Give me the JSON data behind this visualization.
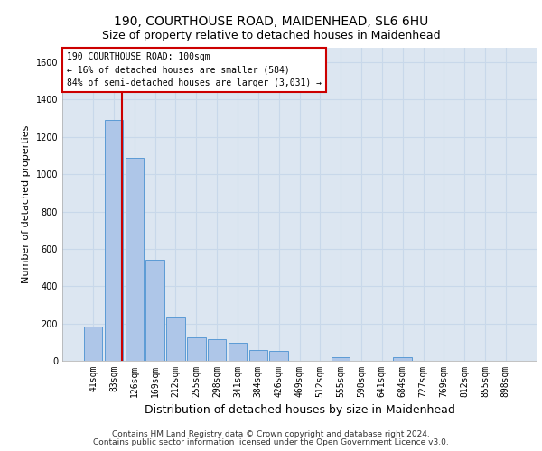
{
  "title1": "190, COURTHOUSE ROAD, MAIDENHEAD, SL6 6HU",
  "title2": "Size of property relative to detached houses in Maidenhead",
  "xlabel": "Distribution of detached houses by size in Maidenhead",
  "ylabel": "Number of detached properties",
  "bar_labels": [
    "41sqm",
    "83sqm",
    "126sqm",
    "169sqm",
    "212sqm",
    "255sqm",
    "298sqm",
    "341sqm",
    "384sqm",
    "426sqm",
    "469sqm",
    "512sqm",
    "555sqm",
    "598sqm",
    "641sqm",
    "684sqm",
    "727sqm",
    "769sqm",
    "812sqm",
    "855sqm",
    "898sqm"
  ],
  "bar_values": [
    185,
    1290,
    1090,
    540,
    235,
    125,
    115,
    95,
    60,
    55,
    0,
    0,
    20,
    0,
    0,
    20,
    0,
    0,
    0,
    0,
    0
  ],
  "bar_color": "#aec6e8",
  "bar_edge_color": "#5b9bd5",
  "background_color": "#dce6f1",
  "grid_color": "#c8d8ea",
  "vline_x": 1.4,
  "vline_color": "#cc0000",
  "annotation_text": "190 COURTHOUSE ROAD: 100sqm\n← 16% of detached houses are smaller (584)\n84% of semi-detached houses are larger (3,031) →",
  "annotation_box_color": "#cc0000",
  "ylim": [
    0,
    1680
  ],
  "yticks": [
    0,
    200,
    400,
    600,
    800,
    1000,
    1200,
    1400,
    1600
  ],
  "footer1": "Contains HM Land Registry data © Crown copyright and database right 2024.",
  "footer2": "Contains public sector information licensed under the Open Government Licence v3.0.",
  "title1_fontsize": 10,
  "title2_fontsize": 9,
  "xlabel_fontsize": 9,
  "ylabel_fontsize": 8,
  "tick_fontsize": 7,
  "annot_fontsize": 7,
  "footer_fontsize": 6.5
}
